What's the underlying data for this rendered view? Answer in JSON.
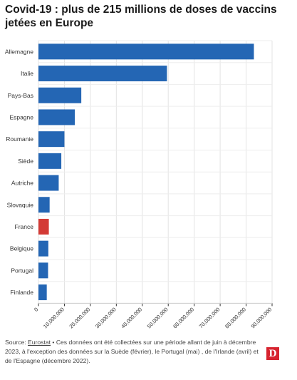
{
  "title": "Covid-19 : plus de 215 millions de doses de vaccins jetées en Europe",
  "chart_data": {
    "type": "bar",
    "orientation": "horizontal",
    "categories": [
      "Allemagne",
      "Italie",
      "Pays-Bas",
      "Espagne",
      "Roumanie",
      "Siède",
      "Autriche",
      "Slovaquie",
      "France",
      "Belgique",
      "Portugal",
      "Finlande"
    ],
    "values": [
      83000000,
      49500000,
      16500000,
      14000000,
      10000000,
      8800000,
      7800000,
      4300000,
      4000000,
      3800000,
      3700000,
      3200000
    ],
    "highlight_category": "France",
    "xlim": [
      0,
      90000000
    ],
    "xticks": [
      "0",
      "10,000,000",
      "20,000,000",
      "30,000,000",
      "40,000,000",
      "50,000,000",
      "60,000,000",
      "70,000,000",
      "80,000,000",
      "90,000,000"
    ],
    "xlabel": "",
    "ylabel": "",
    "grid": "vertical gridlines",
    "legend": "none",
    "colors": {
      "bar": "#2466b4",
      "highlight": "#d33a35",
      "grid": "#e3e3e3",
      "axis": "#333333"
    }
  },
  "footer": {
    "prefix": "Source: ",
    "source_link": "Eurostat",
    "text": " • Ces données ont été collectées sur une période allant de juin à décembre 2023, à l'exception des données sur la Suède (février), le Portugal (mai) , de l'Irlande (avril) et de l'Espagne (décembre 2022)."
  },
  "logo": {
    "letter": "D",
    "color": "#d7232f"
  }
}
